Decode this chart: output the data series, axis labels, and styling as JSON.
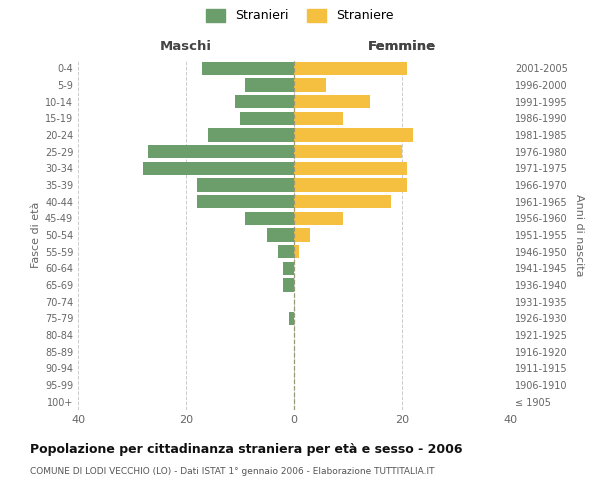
{
  "age_groups": [
    "100+",
    "95-99",
    "90-94",
    "85-89",
    "80-84",
    "75-79",
    "70-74",
    "65-69",
    "60-64",
    "55-59",
    "50-54",
    "45-49",
    "40-44",
    "35-39",
    "30-34",
    "25-29",
    "20-24",
    "15-19",
    "10-14",
    "5-9",
    "0-4"
  ],
  "birth_years": [
    "≤ 1905",
    "1906-1910",
    "1911-1915",
    "1916-1920",
    "1921-1925",
    "1926-1930",
    "1931-1935",
    "1936-1940",
    "1941-1945",
    "1946-1950",
    "1951-1955",
    "1956-1960",
    "1961-1965",
    "1966-1970",
    "1971-1975",
    "1976-1980",
    "1981-1985",
    "1986-1990",
    "1991-1995",
    "1996-2000",
    "2001-2005"
  ],
  "males": [
    0,
    0,
    0,
    0,
    0,
    1,
    0,
    2,
    2,
    3,
    5,
    9,
    18,
    18,
    28,
    27,
    16,
    10,
    11,
    9,
    17
  ],
  "females": [
    0,
    0,
    0,
    0,
    0,
    0,
    0,
    0,
    0,
    1,
    3,
    9,
    18,
    21,
    21,
    20,
    22,
    9,
    14,
    6,
    21
  ],
  "male_color": "#6b9e6b",
  "female_color": "#f5c040",
  "background_color": "#ffffff",
  "grid_color": "#cccccc",
  "title": "Popolazione per cittadinanza straniera per età e sesso - 2006",
  "subtitle": "COMUNE DI LODI VECCHIO (LO) - Dati ISTAT 1° gennaio 2006 - Elaborazione TUTTITALIA.IT",
  "xlabel_left": "Maschi",
  "xlabel_right": "Femmine",
  "ylabel_left": "Fasce di età",
  "ylabel_right": "Anni di nascita",
  "legend_male": "Stranieri",
  "legend_female": "Straniere",
  "xlim": 40,
  "bar_height": 0.8
}
